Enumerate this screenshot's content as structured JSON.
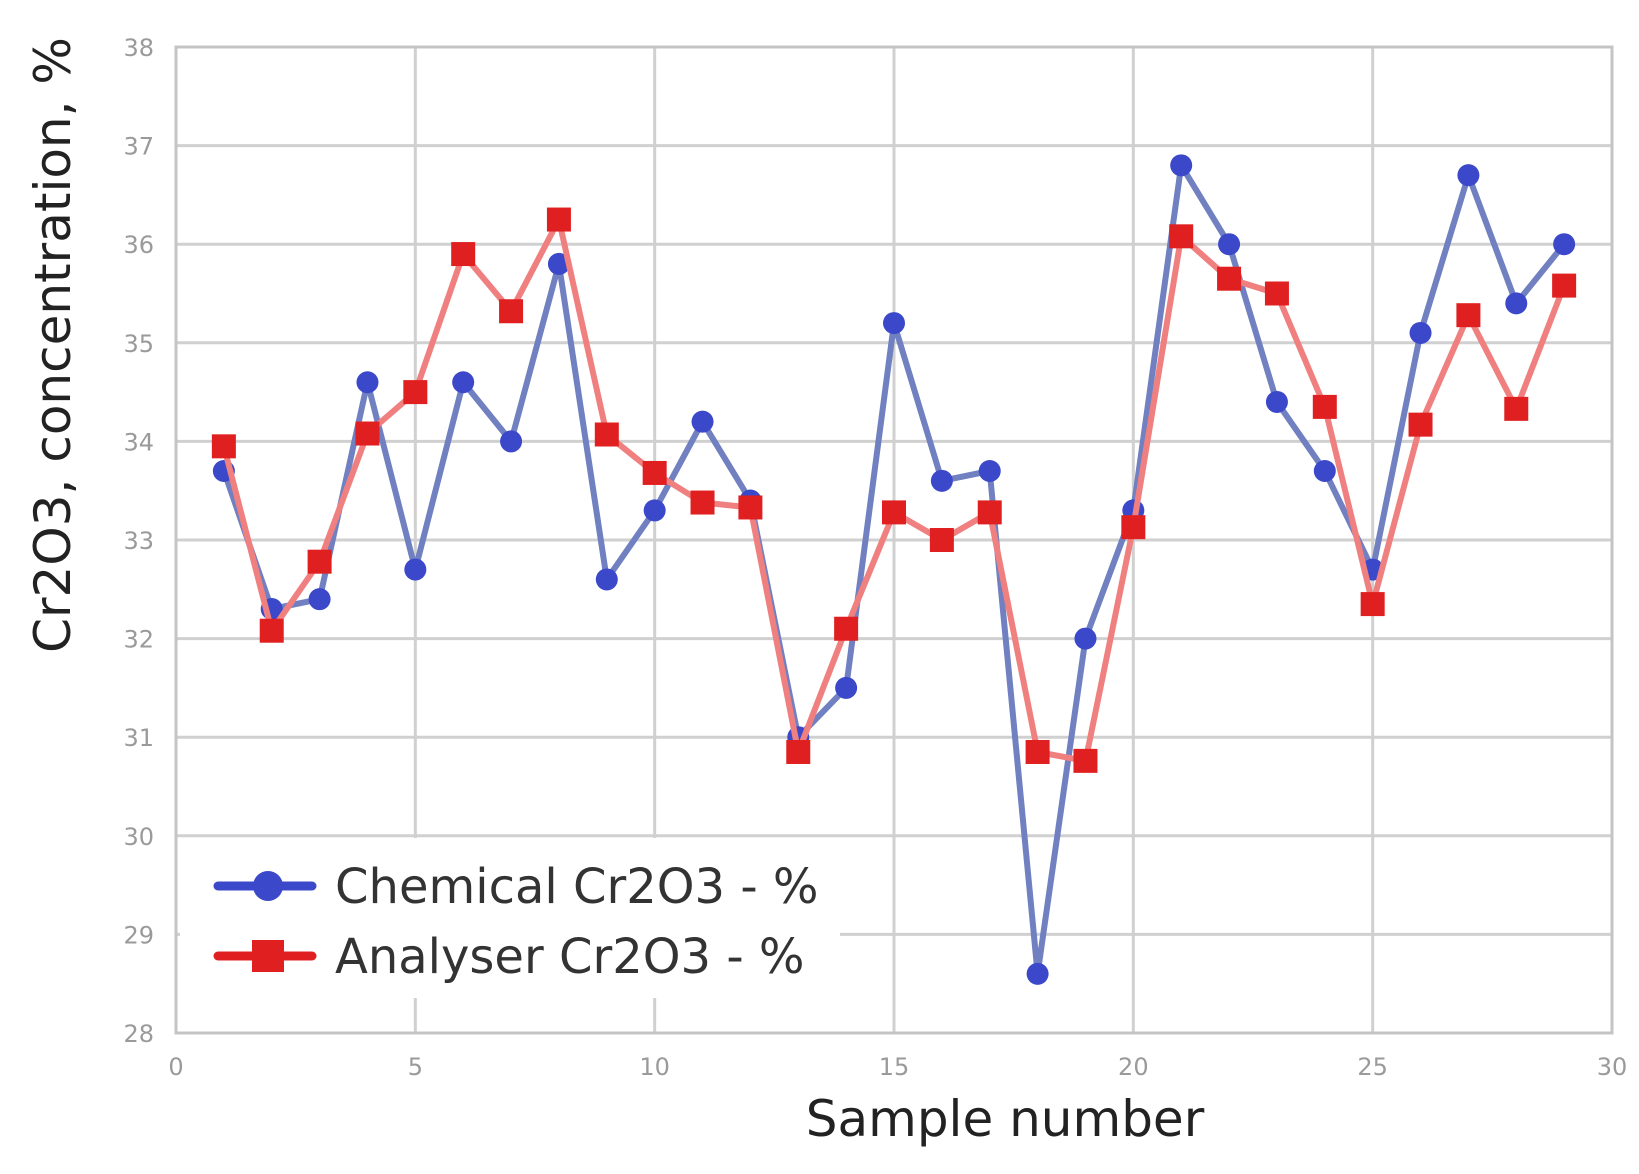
{
  "chart_data": {
    "type": "line",
    "title": "",
    "xlabel": "Sample number",
    "ylabel": "Cr2O3, concentration, %",
    "xlim": [
      0,
      30
    ],
    "ylim": [
      28,
      38
    ],
    "xticks": [
      0,
      5,
      10,
      15,
      20,
      25,
      30
    ],
    "yticks": [
      28,
      29,
      30,
      31,
      32,
      33,
      34,
      35,
      36,
      37,
      38
    ],
    "grid": true,
    "legend_position": "bottom-left",
    "x": [
      1,
      2,
      3,
      4,
      5,
      6,
      7,
      8,
      9,
      10,
      11,
      12,
      13,
      14,
      15,
      16,
      17,
      18,
      19,
      20,
      21,
      22,
      23,
      24,
      25,
      26,
      27,
      28,
      29
    ],
    "series": [
      {
        "name": "Chemical Cr2O3 - %",
        "color": "#3a48c9",
        "line_color": "#7080c0",
        "marker": "circle",
        "values": [
          33.7,
          32.3,
          32.4,
          34.6,
          32.7,
          34.6,
          34.0,
          35.8,
          32.6,
          33.3,
          34.2,
          33.4,
          31.0,
          31.5,
          35.2,
          33.6,
          33.7,
          28.6,
          32.0,
          33.3,
          36.8,
          36.0,
          34.4,
          33.7,
          32.7,
          35.1,
          36.7,
          35.4,
          36.0
        ]
      },
      {
        "name": "Analyser Cr2O3 - %",
        "color": "#e02020",
        "line_color": "#f08080",
        "marker": "square",
        "values": [
          33.95,
          32.08,
          32.78,
          34.08,
          34.5,
          35.9,
          35.32,
          36.25,
          34.07,
          33.68,
          33.38,
          33.33,
          30.85,
          32.1,
          33.28,
          33.0,
          33.28,
          30.85,
          30.76,
          33.13,
          36.08,
          35.65,
          35.5,
          34.35,
          32.35,
          34.17,
          35.28,
          34.33,
          35.58
        ]
      }
    ]
  }
}
